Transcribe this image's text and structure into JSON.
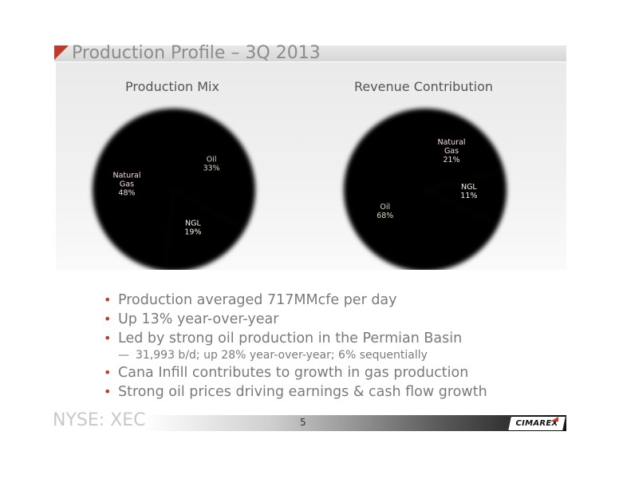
{
  "slide": {
    "title": "Production Profile – 3Q 2013",
    "page_number": "5",
    "ticker": "NYSE: XEC",
    "logo_text": "CIMAREX"
  },
  "colors": {
    "natural_gas": "#a8262b",
    "oil": "#4a4229",
    "ngl": "#7aa040",
    "accent": "#c0392b"
  },
  "chart_data": [
    {
      "type": "pie",
      "title": "Production Mix",
      "slices": [
        {
          "label": "Oil",
          "value": 33,
          "color": "#4a4229",
          "lines": [
            "Oil",
            "33%"
          ],
          "text_color": "#d8d8c0"
        },
        {
          "label": "NGL",
          "value": 19,
          "color": "#7aa040",
          "lines": [
            "NGL",
            "19%"
          ],
          "text_color": "#f2f2e0"
        },
        {
          "label": "Natural Gas",
          "value": 48,
          "color": "#a8262b",
          "lines": [
            "Natural",
            "Gas",
            "48%"
          ],
          "text_color": "#f2dcdc"
        }
      ]
    },
    {
      "type": "pie",
      "title": "Revenue Contribution",
      "slices": [
        {
          "label": "Natural Gas",
          "value": 21,
          "color": "#a8262b",
          "lines": [
            "Natural",
            "Gas",
            "21%"
          ],
          "text_color": "#f2dcdc"
        },
        {
          "label": "NGL",
          "value": 11,
          "color": "#7aa040",
          "lines": [
            "NGL",
            "11%"
          ],
          "text_color": "#f2f2e0"
        },
        {
          "label": "Oil",
          "value": 68,
          "color": "#4a4229",
          "lines": [
            "Oil",
            "68%"
          ],
          "text_color": "#d8d8c0"
        }
      ]
    }
  ],
  "bullets": [
    {
      "text": "Production averaged 717MMcfe per day",
      "level": 1
    },
    {
      "text": "Up 13% year-over-year",
      "level": 1
    },
    {
      "text": "Led by strong oil production in the Permian Basin",
      "level": 1
    },
    {
      "text": "31,993 b/d; up 28% year-over-year; 6% sequentially",
      "level": 2
    },
    {
      "text": "Cana Infill contributes to growth in gas production",
      "level": 1
    },
    {
      "text": "Strong oil prices driving earnings & cash flow growth",
      "level": 1
    }
  ]
}
